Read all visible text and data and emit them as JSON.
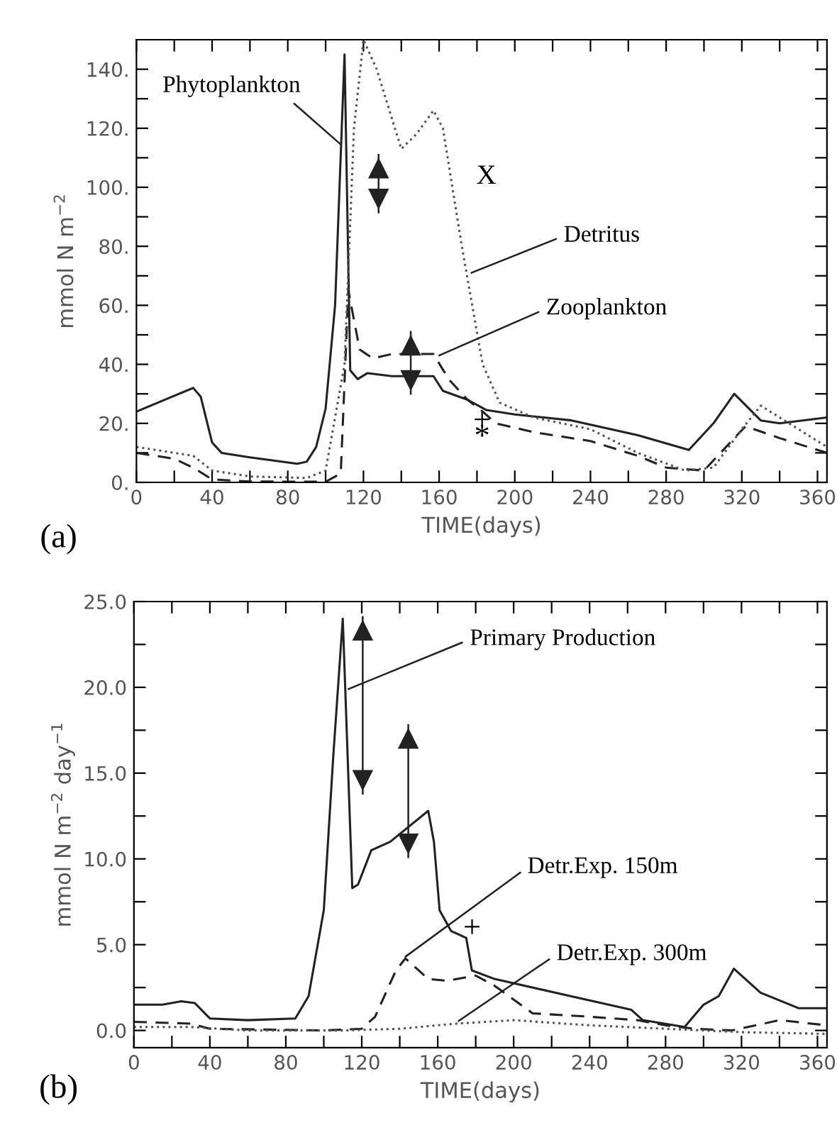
{
  "chart_data": [
    {
      "type": "line",
      "xlabel": "TIME(days)",
      "ylabel": "mmol N m$^{−2}$",
      "xlim": [
        0,
        365
      ],
      "ylim": [
        0,
        150
      ],
      "xticks": [
        0,
        {
          "value": 20,
          "label": null
        },
        40,
        {
          "value": 60,
          "label": null
        },
        80,
        {
          "value": 100,
          "label": null
        },
        120,
        {
          "value": 140,
          "label": null
        },
        160,
        {
          "value": 180,
          "label": null
        },
        200,
        {
          "value": 220,
          "label": null
        },
        240,
        {
          "value": 260,
          "label": null
        },
        280,
        {
          "value": 300,
          "label": null
        },
        320,
        {
          "value": 340,
          "label": null
        },
        360
      ],
      "yticks": [
        {
          "value": 0,
          "label": "0."
        },
        {
          "value": 10,
          "label": null
        },
        {
          "value": 20,
          "label": "20."
        },
        {
          "value": 30,
          "label": null
        },
        {
          "value": 40,
          "label": "40."
        },
        {
          "value": 50,
          "label": null
        },
        {
          "value": 60,
          "label": "60."
        },
        {
          "value": 70,
          "label": null
        },
        {
          "value": 80,
          "label": "80."
        },
        {
          "value": 90,
          "label": null
        },
        {
          "value": 100,
          "label": "100."
        },
        {
          "value": 110,
          "label": null
        },
        {
          "value": 120,
          "label": "120."
        },
        {
          "value": 130,
          "label": null
        },
        {
          "value": 140,
          "label": "140."
        }
      ],
      "grid": false,
      "legend": false,
      "series": [
        {
          "color": "#222222",
          "line_style": "solid",
          "x": [
            0,
            30,
            34,
            40,
            45,
            60,
            85,
            90,
            95,
            100,
            105,
            110,
            113,
            117,
            122,
            135,
            157,
            162,
            175,
            185,
            200,
            230,
            265,
            292,
            305,
            316,
            330,
            340,
            365
          ],
          "values": [
            24,
            32,
            29,
            13.5,
            10,
            8.5,
            6.3,
            7,
            12,
            25,
            60,
            145,
            38,
            35,
            37,
            36,
            36,
            31,
            28,
            24.5,
            23,
            21,
            16,
            11,
            20,
            30,
            21,
            20,
            22
          ]
        },
        {
          "color": "#222222",
          "line_style": "dashed",
          "x": [
            0,
            20,
            30,
            40,
            60,
            100,
            108,
            112,
            118,
            125,
            135,
            157,
            165,
            175,
            183,
            190,
            210,
            240,
            265,
            280,
            300,
            316,
            322,
            340,
            365
          ],
          "values": [
            10,
            8,
            5,
            1,
            0.3,
            0.2,
            3,
            65,
            45,
            42,
            43.5,
            43.5,
            35,
            28,
            24,
            20,
            17,
            14,
            9,
            5,
            4,
            15,
            19,
            15,
            10
          ]
        },
        {
          "color": "#555555",
          "line_style": "dotted",
          "x": [
            0,
            30,
            40,
            60,
            90,
            100,
            110,
            115,
            120,
            127,
            140,
            148,
            157,
            162,
            172,
            183,
            192,
            210,
            240,
            265,
            290,
            305,
            320,
            330,
            340,
            365
          ],
          "values": [
            12,
            9,
            4,
            2,
            1.5,
            4,
            40,
            120,
            150,
            140,
            113,
            118,
            126,
            120,
            80,
            40,
            27,
            22,
            18,
            10,
            4,
            5,
            18,
            26,
            22,
            12
          ]
        },
        {
          "color": "#222222",
          "line_style": "solid",
          "x": [
            128,
            128
          ],
          "values": [
            91.5,
            111
          ]
        },
        {
          "color": "#222222",
          "line_style": "solid",
          "x": [
            145,
            145
          ],
          "values": [
            30,
            51
          ]
        }
      ],
      "annotations": [
        {
          "text": "Phytoplankton",
          "x": 108,
          "y": 114.5
        },
        {
          "text": "Detritus",
          "x": 177,
          "y": 71
        },
        {
          "text": "Zooplankton",
          "x": 160,
          "y": 43
        },
        "X",
        "+",
        "*",
        "(a)"
      ]
    },
    {
      "type": "line",
      "xlabel": "TIME(days)",
      "ylabel": "mmol N m$^{−2}$ day$^{−1}$",
      "xlim": [
        0,
        365
      ],
      "ylim": [
        -1,
        25
      ],
      "xticks": [
        0,
        {
          "value": 20,
          "label": null
        },
        40,
        {
          "value": 60,
          "label": null
        },
        80,
        {
          "value": 100,
          "label": null
        },
        120,
        {
          "value": 140,
          "label": null
        },
        160,
        {
          "value": 180,
          "label": null
        },
        200,
        {
          "value": 220,
          "label": null
        },
        240,
        {
          "value": 260,
          "label": null
        },
        280,
        {
          "value": 300,
          "label": null
        },
        320,
        {
          "value": 340,
          "label": null
        },
        360
      ],
      "yticks": [
        {
          "value": 0,
          "label": "0.0"
        },
        {
          "value": 2.5,
          "label": null
        },
        {
          "value": 5,
          "label": "5.0"
        },
        {
          "value": 7.5,
          "label": null
        },
        {
          "value": 10,
          "label": "10.0"
        },
        {
          "value": 12.5,
          "label": null
        },
        {
          "value": 15,
          "label": "15.0"
        },
        {
          "value": 17.5,
          "label": null
        },
        {
          "value": 20,
          "label": "20.0"
        },
        {
          "value": 22.5,
          "label": null
        },
        {
          "value": 25,
          "label": "25.0"
        }
      ],
      "grid": false,
      "legend": false,
      "series": [
        {
          "color": "#222222",
          "line_style": "solid",
          "x": [
            0,
            15,
            25,
            32,
            40,
            60,
            85,
            92,
            100,
            105,
            110,
            115,
            118,
            125,
            135,
            155,
            158,
            161,
            167,
            175,
            178,
            190,
            230,
            262,
            268,
            290,
            300,
            308,
            316,
            330,
            350,
            365
          ],
          "values": [
            1.5,
            1.5,
            1.7,
            1.6,
            0.7,
            0.6,
            0.7,
            2,
            7,
            16,
            24,
            8.3,
            8.5,
            10.5,
            11,
            12.8,
            11,
            7,
            5.8,
            5.4,
            3.5,
            3,
            2,
            1.2,
            0.6,
            0.2,
            1.5,
            2,
            3.6,
            2.2,
            1.3,
            1.3
          ]
        },
        {
          "color": "#222222",
          "line_style": "dashed",
          "x": [
            0,
            30,
            40,
            100,
            120,
            127,
            138,
            143,
            155,
            165,
            180,
            190,
            210,
            240,
            265,
            280,
            295,
            315,
            340,
            365
          ],
          "values": [
            0.5,
            0.4,
            0.1,
            0,
            0.1,
            0.8,
            3.5,
            4.2,
            3,
            2.9,
            3.2,
            2.6,
            1,
            0.8,
            0.6,
            0.3,
            0.1,
            0,
            0.6,
            0.3
          ]
        },
        {
          "color": "#555555",
          "line_style": "dotted",
          "x": [
            0,
            30,
            60,
            110,
            140,
            170,
            200,
            240,
            280,
            320,
            365
          ],
          "values": [
            0.2,
            0.2,
            0,
            0,
            0.1,
            0.4,
            0.6,
            0.3,
            0.1,
            -0.1,
            -0.2
          ]
        },
        {
          "color": "#222222",
          "line_style": "solid",
          "x": [
            120.5,
            120.5
          ],
          "values": [
            13.8,
            24.1
          ]
        },
        {
          "color": "#222222",
          "line_style": "solid",
          "x": [
            144.5,
            144.5
          ],
          "values": [
            10.1,
            17.8
          ]
        }
      ],
      "annotations": [
        {
          "text": "Primary Production",
          "x": 113,
          "y": 19.9
        },
        {
          "text": "Detr.Exp. 150m",
          "x": 143,
          "y": 4.3
        },
        {
          "text": "Detr.Exp. 300m",
          "x": 171,
          "y": 0.55
        },
        "+",
        "(b)"
      ]
    }
  ]
}
